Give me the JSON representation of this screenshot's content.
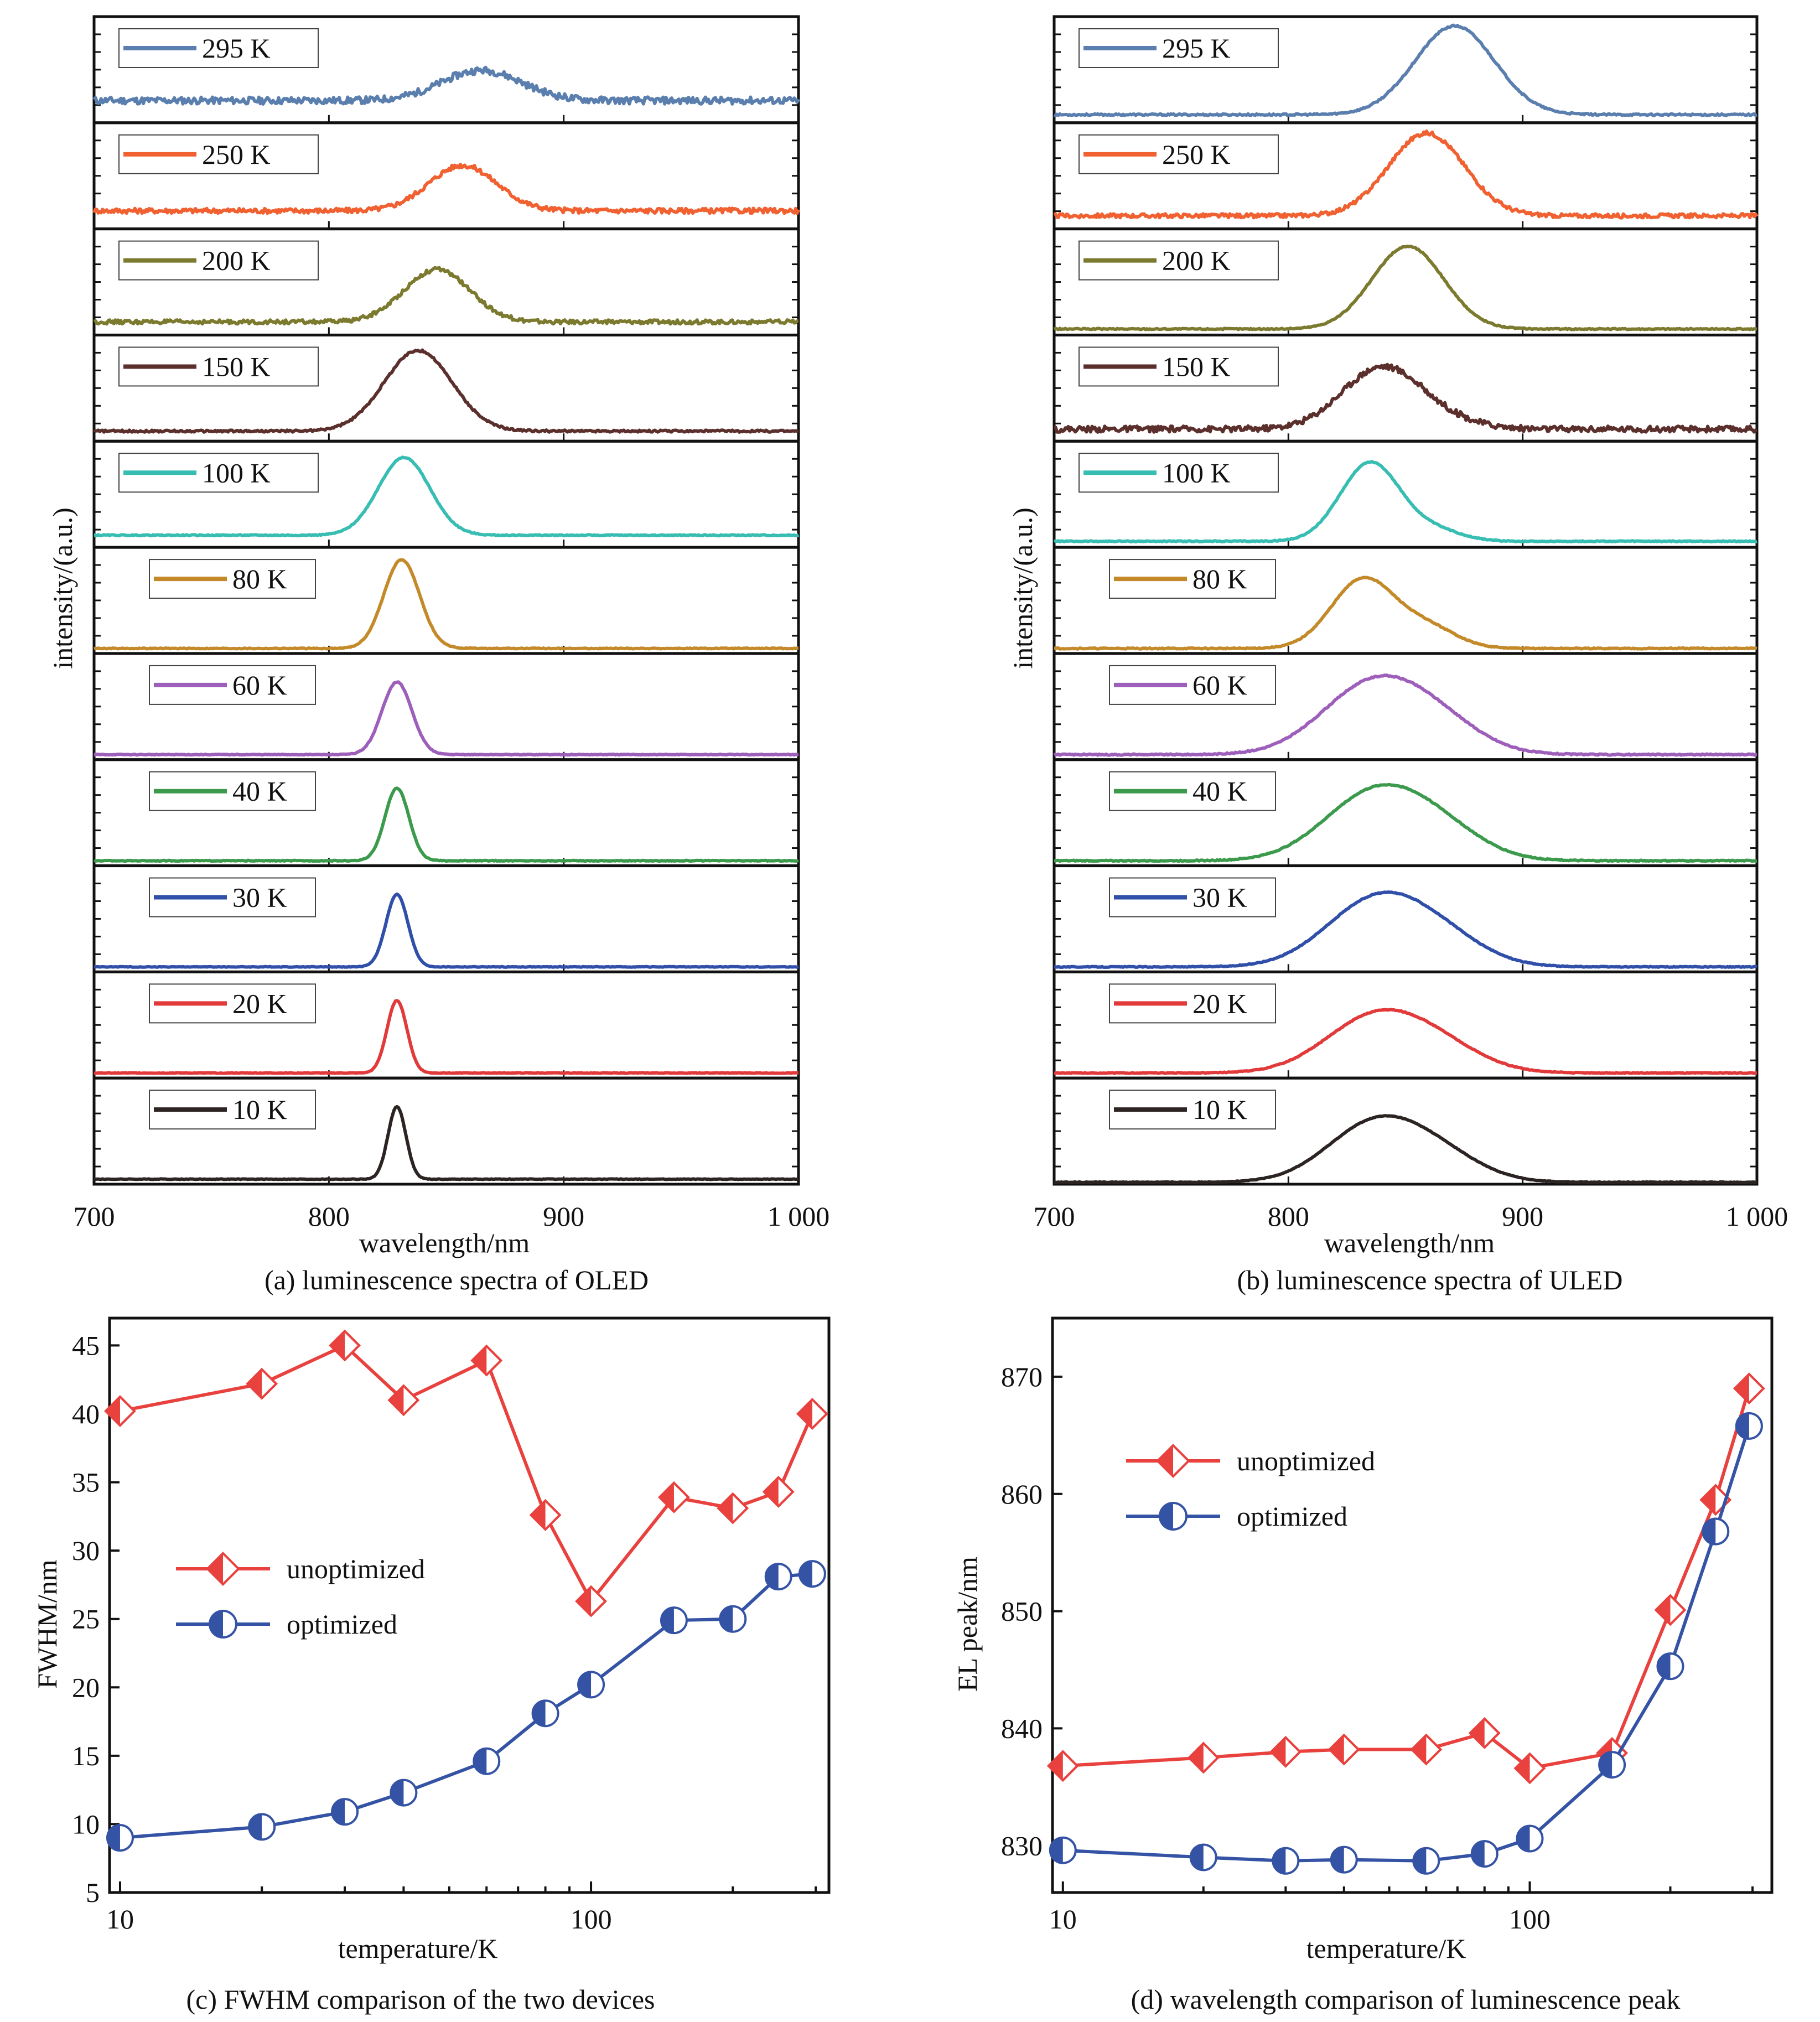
{
  "colors": {
    "axis": "#111111",
    "unoptimized": "#e8413e",
    "optimized": "#3553a5",
    "legend_border": "#444444"
  },
  "chart_data": [
    {
      "panel": "a",
      "type": "line",
      "caption": "(a) luminescence spectra of OLED",
      "xlabel": "wavelength/nm",
      "ylabel": "intensity/(a.u.)",
      "xlim": [
        700,
        1000
      ],
      "xticks": [
        "700",
        "800",
        "900",
        "1 000"
      ],
      "grid": false,
      "legend_placement": "top-left of each stacked sub-panel",
      "series": [
        {
          "name": "295 K",
          "color": "#5a7fae",
          "peak": 865,
          "fwhm": 40,
          "height": 0.3,
          "baseline": 0.22,
          "noise": 0.035,
          "shoulder": 0
        },
        {
          "name": "250 K",
          "color": "#f06030",
          "peak": 857,
          "fwhm": 34,
          "height": 0.45,
          "baseline": 0.18,
          "noise": 0.025,
          "shoulder": 0
        },
        {
          "name": "200 K",
          "color": "#7b7a2e",
          "peak": 846,
          "fwhm": 33,
          "height": 0.52,
          "baseline": 0.13,
          "noise": 0.02,
          "shoulder": 0
        },
        {
          "name": "150 K",
          "color": "#5b2f2c",
          "peak": 838,
          "fwhm": 34,
          "height": 0.8,
          "baseline": 0.1,
          "noise": 0.01,
          "shoulder": 0
        },
        {
          "name": "100 K",
          "color": "#38bdb3",
          "peak": 832,
          "fwhm": 26,
          "height": 0.77,
          "baseline": 0.12,
          "noise": 0.005,
          "shoulder": 0
        },
        {
          "name": "80 K",
          "color": "#c48a2a",
          "peak": 831,
          "fwhm": 18,
          "height": 0.88,
          "baseline": 0.05,
          "noise": 0.004,
          "shoulder": 0
        },
        {
          "name": "60 K",
          "color": "#9d5fba",
          "peak": 829,
          "fwhm": 15,
          "height": 0.72,
          "baseline": 0.05,
          "noise": 0.004,
          "shoulder": 0
        },
        {
          "name": "40 K",
          "color": "#3b9a4c",
          "peak": 829,
          "fwhm": 12,
          "height": 0.72,
          "baseline": 0.05,
          "noise": 0.004,
          "shoulder": 0
        },
        {
          "name": "30 K",
          "color": "#2f4fa8",
          "peak": 829,
          "fwhm": 11,
          "height": 0.72,
          "baseline": 0.05,
          "noise": 0.003,
          "shoulder": 0
        },
        {
          "name": "20 K",
          "color": "#e23a3a",
          "peak": 829,
          "fwhm": 10,
          "height": 0.72,
          "baseline": 0.05,
          "noise": 0.003,
          "shoulder": 0
        },
        {
          "name": "10 K",
          "color": "#2b2422",
          "peak": 829,
          "fwhm": 9,
          "height": 0.72,
          "baseline": 0.05,
          "noise": 0.003,
          "shoulder": 0
        }
      ]
    },
    {
      "panel": "b",
      "type": "line",
      "caption": "(b) luminescence spectra of ULED",
      "xlabel": "wavelength/nm",
      "ylabel": "intensity/(a.u.)",
      "xlim": [
        700,
        1000
      ],
      "xticks": [
        "700",
        "800",
        "900",
        "1 000"
      ],
      "grid": false,
      "legend_placement": "top-left of each stacked sub-panel",
      "series": [
        {
          "name": "295 K",
          "color": "#5a7fae",
          "peak": 871,
          "fwhm": 40,
          "height": 0.88,
          "baseline": 0.08,
          "noise": 0.008,
          "shoulder": 0
        },
        {
          "name": "250 K",
          "color": "#f06030",
          "peak": 859,
          "fwhm": 38,
          "height": 0.82,
          "baseline": 0.13,
          "noise": 0.02,
          "shoulder": 0
        },
        {
          "name": "200 K",
          "color": "#7b7a2e",
          "peak": 851,
          "fwhm": 36,
          "height": 0.82,
          "baseline": 0.06,
          "noise": 0.006,
          "shoulder": 0
        },
        {
          "name": "150 K",
          "color": "#5b2f2c",
          "peak": 840,
          "fwhm": 40,
          "height": 0.65,
          "baseline": 0.12,
          "noise": 0.03,
          "shoulder": 0.15
        },
        {
          "name": "100 K",
          "color": "#38bdb3",
          "peak": 835,
          "fwhm": 30,
          "height": 0.85,
          "baseline": 0.06,
          "noise": 0.005,
          "shoulder": 0.2
        },
        {
          "name": "80 K",
          "color": "#c48a2a",
          "peak": 832,
          "fwhm": 32,
          "height": 0.82,
          "baseline": 0.05,
          "noise": 0.005,
          "shoulder": 0.4
        },
        {
          "name": "60 K",
          "color": "#9d5fba",
          "peak": 835,
          "fwhm": 50,
          "height": 0.85,
          "baseline": 0.05,
          "noise": 0.006,
          "shoulder": 0.55
        },
        {
          "name": "40 K",
          "color": "#3b9a4c",
          "peak": 836,
          "fwhm": 50,
          "height": 0.82,
          "baseline": 0.05,
          "noise": 0.005,
          "shoulder": 0.55
        },
        {
          "name": "30 K",
          "color": "#2f4fa8",
          "peak": 837,
          "fwhm": 50,
          "height": 0.8,
          "baseline": 0.05,
          "noise": 0.004,
          "shoulder": 0.5
        },
        {
          "name": "20 K",
          "color": "#e23a3a",
          "peak": 837,
          "fwhm": 50,
          "height": 0.68,
          "baseline": 0.05,
          "noise": 0.004,
          "shoulder": 0.5
        },
        {
          "name": "10 K",
          "color": "#2b2422",
          "peak": 837,
          "fwhm": 48,
          "height": 0.72,
          "baseline": 0.02,
          "noise": 0.003,
          "shoulder": 0.5
        }
      ]
    },
    {
      "panel": "c",
      "type": "line",
      "caption": "(c) FWHM comparison of the two devices",
      "xlabel": "temperature/K",
      "ylabel": "FWHM/nm",
      "xscale": "log",
      "xlim": [
        9.5,
        320
      ],
      "ylim": [
        5,
        47
      ],
      "xticks": [
        10,
        100
      ],
      "yticks": [
        5,
        10,
        15,
        20,
        25,
        30,
        35,
        40,
        45
      ],
      "grid": false,
      "legend_placement": "center-left",
      "x": [
        10,
        20,
        30,
        40,
        60,
        80,
        100,
        150,
        200,
        250,
        295
      ],
      "series": [
        {
          "name": "unoptimized",
          "marker": "half-filled diamond",
          "values": [
            40.2,
            42.2,
            45.0,
            41.0,
            43.9,
            32.6,
            26.3,
            33.9,
            33.1,
            34.3,
            40.0
          ]
        },
        {
          "name": "optimized",
          "marker": "half-filled circle",
          "values": [
            9.0,
            9.8,
            10.9,
            12.3,
            14.6,
            18.1,
            20.2,
            24.9,
            25.0,
            28.1,
            28.3
          ]
        }
      ]
    },
    {
      "panel": "d",
      "type": "line",
      "caption": "(d) wavelength comparison of luminescence peak",
      "xlabel": "temperature/K",
      "ylabel": "EL peak/nm",
      "xscale": "log",
      "xlim": [
        9.5,
        330
      ],
      "ylim": [
        826,
        875
      ],
      "xticks": [
        10,
        100
      ],
      "yticks": [
        830,
        840,
        850,
        860,
        870
      ],
      "grid": false,
      "legend_placement": "top-left",
      "x": [
        10,
        20,
        30,
        40,
        60,
        80,
        100,
        150,
        200,
        250,
        295
      ],
      "series": [
        {
          "name": "unoptimized",
          "marker": "half-filled diamond",
          "values": [
            836.8,
            837.5,
            838.0,
            838.2,
            838.2,
            839.6,
            836.6,
            837.9,
            850.1,
            859.5,
            869.0
          ]
        },
        {
          "name": "optimized",
          "marker": "half-filled circle",
          "values": [
            829.6,
            829.0,
            828.7,
            828.8,
            828.7,
            829.3,
            830.6,
            836.9,
            845.3,
            856.8,
            865.8
          ]
        }
      ]
    }
  ]
}
